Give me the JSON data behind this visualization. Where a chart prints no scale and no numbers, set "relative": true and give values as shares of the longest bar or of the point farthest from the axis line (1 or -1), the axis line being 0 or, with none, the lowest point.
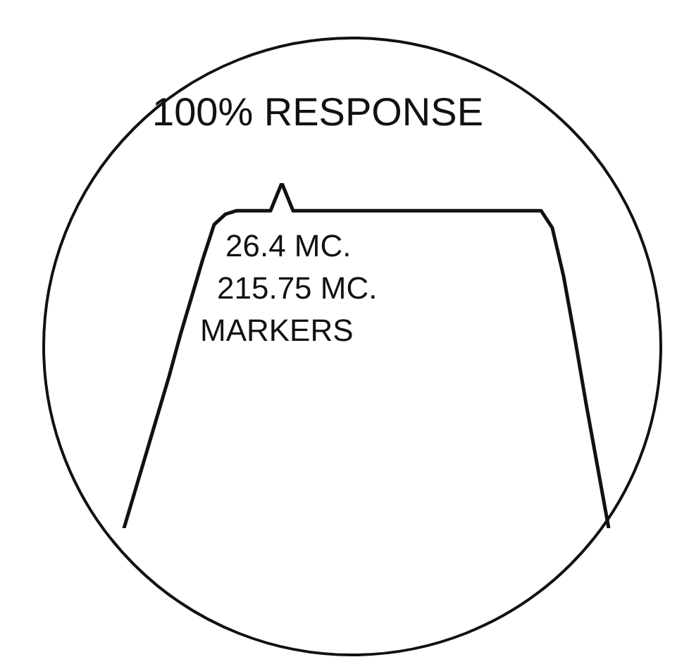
{
  "chart_data": {
    "type": "line",
    "relative": true,
    "color": "#111111",
    "marker": "none",
    "categories": [
      null,
      null,
      null,
      null,
      null,
      null,
      null,
      null,
      null,
      null,
      null,
      null,
      null,
      null,
      null,
      null,
      null,
      null,
      null,
      null,
      null,
      null,
      null,
      null,
      null,
      null,
      null,
      null,
      null,
      null,
      null,
      null,
      null,
      null,
      null,
      null,
      null,
      null,
      null,
      null,
      null,
      null,
      null,
      null
    ],
    "values": [
      0,
      0.11,
      0.22,
      0.33,
      0.44,
      0.56,
      0.67,
      0.78,
      0.88,
      0.91,
      0.92,
      0.92,
      0.92,
      0.92,
      1,
      0.92,
      0.92,
      0.92,
      0.92,
      0.92,
      0.92,
      0.92,
      0.92,
      0.92,
      0.92,
      0.92,
      0.92,
      0.92,
      0.92,
      0.92,
      0.92,
      0.92,
      0.92,
      0.92,
      0.92,
      0.92,
      0.92,
      0.92,
      0.87,
      0.73,
      0.55,
      0.36,
      0.18,
      0
    ],
    "annotations": [
      "100% RESPONSE",
      "26.4 MC.",
      "215.75 MC.",
      "MARKERS"
    ]
  }
}
